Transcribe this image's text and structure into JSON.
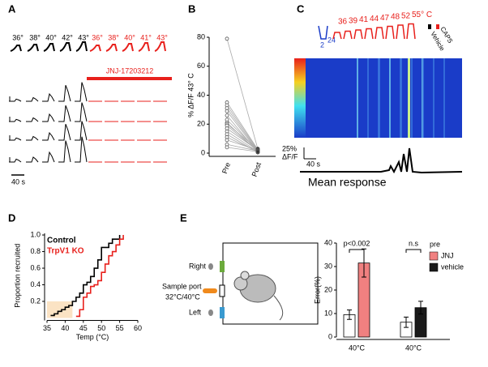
{
  "panels": {
    "a": "A",
    "b": "B",
    "c": "C",
    "d": "D",
    "e": "E"
  },
  "panel_a": {
    "control_temps": [
      "36°",
      "38°",
      "40°",
      "42°",
      "43°"
    ],
    "drug_temps": [
      "36°",
      "38°",
      "40°",
      "41°",
      "43°"
    ],
    "drug": "JNJ-17203212",
    "scale": "40 s"
  },
  "panel_c": {
    "ramp_start": "2",
    "hold": "24",
    "ramp_temps": [
      "36",
      "39",
      "41",
      "44",
      "47",
      "48",
      "52",
      "55° C"
    ],
    "caps": "CAPS",
    "vehicle": "Vehicle",
    "scale_y": "25%",
    "scale_y_unit": "ΔF/F",
    "scale_x": "40 s",
    "trace_label": "Mean response"
  },
  "panel_e_diagram": {
    "right": "Right",
    "sample_port": "Sample port",
    "sample_temps": "32°C/40°C",
    "left": "Left"
  },
  "chart_data": [
    {
      "type": "paired",
      "ylabel": "% ΔF/F 43° C",
      "categories": [
        "Pre",
        "Post"
      ],
      "values": [
        [
          79,
          35,
          33,
          31,
          29,
          26,
          23,
          21,
          20,
          19,
          17,
          15,
          13,
          11,
          9,
          6,
          4
        ],
        [
          3,
          2.5,
          2,
          1.5,
          1,
          0.5,
          2,
          1,
          3,
          1.5,
          2,
          1,
          0.5,
          1,
          2,
          1.5,
          1
        ]
      ],
      "ylim": [
        0,
        80
      ],
      "yticks": [
        0,
        20,
        40,
        60,
        80
      ]
    },
    {
      "type": "step",
      "xlabel": "Temp (°C)",
      "ylabel": "Proportion recruited",
      "xlim": [
        35,
        60
      ],
      "ylim": [
        0,
        1.02
      ],
      "xticks": [
        35,
        40,
        45,
        50,
        55,
        60
      ],
      "yticks": [
        0.2,
        0.4,
        0.6,
        0.8,
        {
          "value": 1,
          "label": "1.0"
        }
      ],
      "shade": {
        "x": [
          35,
          42
        ],
        "y": [
          0,
          0.2
        ],
        "color": "#fbe3c4"
      },
      "series": [
        {
          "name": "Control",
          "color": "#000000",
          "x": [
            36,
            37,
            37,
            38,
            38,
            39,
            39,
            40,
            40,
            41,
            41,
            42,
            42,
            43,
            43,
            44,
            44,
            45,
            45,
            46,
            46,
            47,
            47,
            48,
            48,
            49,
            49,
            50,
            50,
            52,
            52,
            53,
            53,
            55,
            55
          ],
          "y": [
            0.03,
            0.03,
            0.05,
            0.05,
            0.08,
            0.08,
            0.1,
            0.1,
            0.13,
            0.13,
            0.15,
            0.15,
            0.2,
            0.2,
            0.25,
            0.25,
            0.3,
            0.3,
            0.4,
            0.4,
            0.43,
            0.43,
            0.5,
            0.5,
            0.6,
            0.6,
            0.7,
            0.7,
            0.85,
            0.85,
            0.9,
            0.9,
            0.95,
            0.95,
            1.0
          ]
        },
        {
          "name": "TrpV1 KO",
          "color": "#e8201c",
          "x": [
            43,
            44,
            44,
            45,
            45,
            46,
            46,
            47,
            47,
            48,
            48,
            49,
            49,
            50,
            50,
            51,
            51,
            52,
            52,
            53,
            53,
            54,
            54,
            55,
            55,
            56,
            56
          ],
          "y": [
            0.02,
            0.02,
            0.1,
            0.1,
            0.25,
            0.25,
            0.3,
            0.3,
            0.38,
            0.38,
            0.4,
            0.4,
            0.45,
            0.45,
            0.55,
            0.55,
            0.65,
            0.65,
            0.75,
            0.75,
            0.8,
            0.8,
            0.88,
            0.88,
            0.95,
            0.95,
            1.0
          ]
        }
      ]
    },
    {
      "type": "bar",
      "ylabel": "Error(%)",
      "categories": [
        "40°C",
        "40°C"
      ],
      "ylim": [
        0,
        40
      ],
      "yticks": [
        0,
        10,
        20,
        30,
        40
      ],
      "annotations": [
        "p<0.002",
        "n.s"
      ],
      "series": [
        {
          "name": "pre",
          "color": "#ffffff",
          "values": [
            9.5,
            6.3
          ],
          "errors": [
            2,
            2.2
          ]
        },
        {
          "name": "JNJ",
          "color": "#f08080",
          "values": [
            31.5,
            null
          ],
          "errors": [
            6,
            null
          ]
        },
        {
          "name": "vehicle",
          "color": "#1a1a1a",
          "values": [
            null,
            12.5
          ],
          "errors": [
            null,
            2.7
          ]
        }
      ]
    }
  ]
}
